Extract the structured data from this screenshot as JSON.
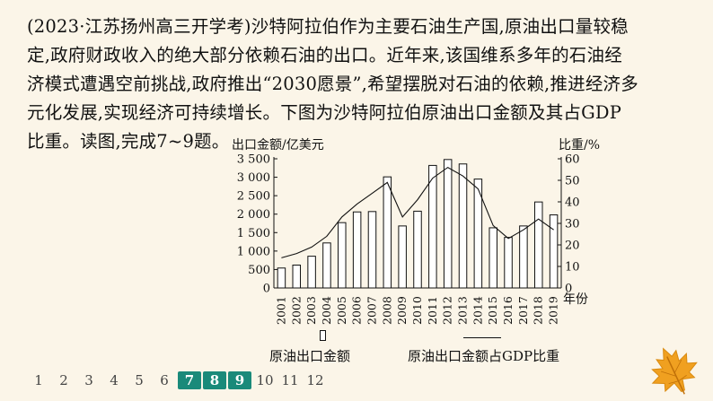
{
  "passage": {
    "lines": [
      "(2023·江苏扬州高三开学考)沙特阿拉伯作为主要石油生产国,原油出口量较稳",
      "定,政府财政收入的绝大部分依赖石油的出口。近年来,该国维系多年的石油经",
      "济模式遭遇空前挑战,政府推出“2030愿景”,希望摆脱对石油的依赖,推进经济多",
      "元化发展,实现经济可持续增长。下图为沙特阿拉伯原油出口金额及其占GDP",
      "比重。读图,完成7~9题。"
    ]
  },
  "chart_data": {
    "type": "bar+line",
    "categories": [
      "2001",
      "2002",
      "2003",
      "2004",
      "2005",
      "2006",
      "2007",
      "2008",
      "2009",
      "2010",
      "2011",
      "2012",
      "2013",
      "2014",
      "2015",
      "2016",
      "2017",
      "2018",
      "2019"
    ],
    "series": [
      {
        "name": "原油出口金额",
        "type": "bar",
        "axis": "left",
        "values": [
          540,
          620,
          860,
          1220,
          1770,
          2060,
          2070,
          3010,
          1680,
          2080,
          3320,
          3480,
          3360,
          2950,
          1630,
          1370,
          1680,
          2330,
          1980
        ]
      },
      {
        "name": "原油出口金额占GDP比重",
        "type": "line",
        "axis": "right",
        "values": [
          14,
          16,
          19,
          24,
          33,
          39,
          44,
          49,
          33,
          41,
          51,
          56,
          52,
          46,
          29,
          23,
          27,
          32,
          27
        ]
      }
    ],
    "ylabel_left": "出口金额/亿美元",
    "ylabel_right": "比重/%",
    "xlabel": "年份",
    "ylim_left": [
      0,
      3500
    ],
    "ylim_right": [
      0,
      60
    ],
    "yticks_left": [
      "0",
      "500",
      "1 000",
      "1 500",
      "2 000",
      "2 500",
      "3 000",
      "3 500"
    ],
    "yticks_right": [
      "0",
      "10",
      "20",
      "30",
      "40",
      "50",
      "60"
    ],
    "grid": false,
    "legend_position": "bottom"
  },
  "legend": {
    "bar_label": "原油出口金额",
    "line_label": "原油出口金额占GDP比重"
  },
  "pager": {
    "pages": [
      "1",
      "2",
      "3",
      "4",
      "5",
      "6",
      "7",
      "8",
      "9",
      "10",
      "11",
      "12"
    ],
    "active": [
      "7",
      "8",
      "9"
    ]
  },
  "colors": {
    "background": "#fbf5e8",
    "active_page": "#1a8a7a",
    "leaf": "#f0a020"
  },
  "icons": {
    "corner": "maple-leaf-icon"
  }
}
